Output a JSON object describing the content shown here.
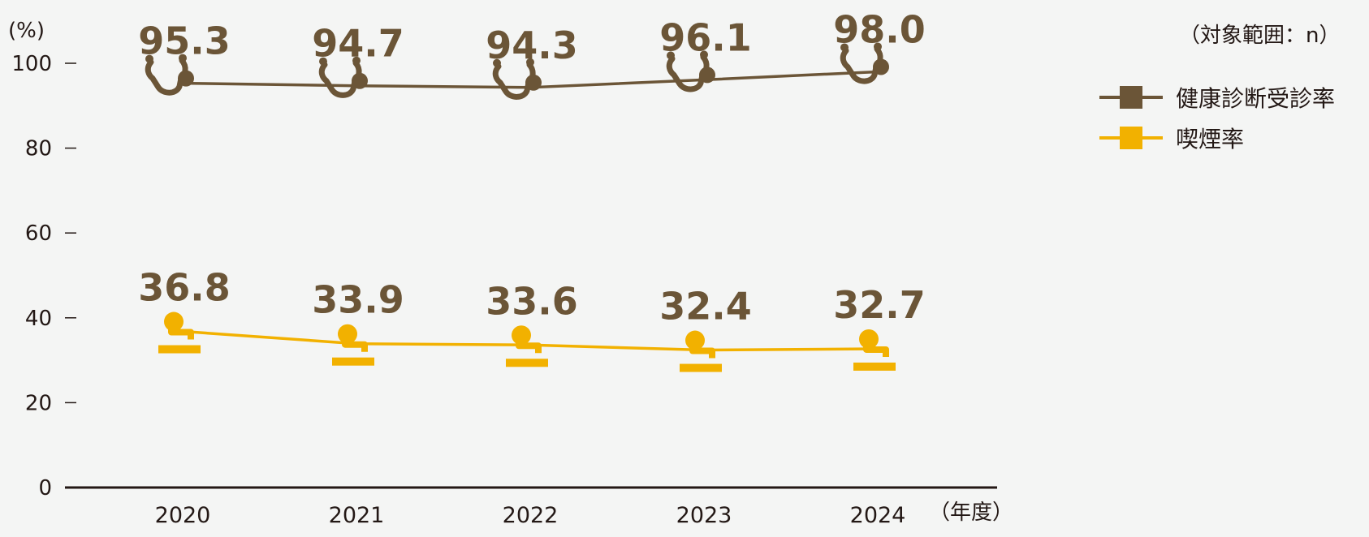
{
  "chart_data": {
    "type": "line",
    "title": "",
    "xlabel": "",
    "ylabel": "",
    "y_unit_label": "(%)",
    "x_unit_label": "（年度）",
    "scope_note": "（対象範囲：n）",
    "categories": [
      "2020",
      "2021",
      "2022",
      "2023",
      "2024"
    ],
    "ylim": [
      0,
      100
    ],
    "yticks": [
      0,
      20,
      40,
      60,
      80,
      100
    ],
    "grid": false,
    "legend_position": "top-right",
    "series": [
      {
        "name": "健康診断受診率",
        "values": [
          95.3,
          94.7,
          94.3,
          96.1,
          98.0
        ],
        "labels": [
          "95.3",
          "94.7",
          "94.3",
          "96.1",
          "98.0"
        ],
        "color": "#6b5537",
        "marker_icon": "stethoscope-icon"
      },
      {
        "name": "喫煙率",
        "values": [
          36.8,
          33.9,
          33.6,
          32.4,
          32.7
        ],
        "labels": [
          "36.8",
          "33.9",
          "33.6",
          "32.4",
          "32.7"
        ],
        "color": "#f2b100",
        "label_color": "#6b5537",
        "marker_icon": "pipe-icon"
      }
    ]
  }
}
